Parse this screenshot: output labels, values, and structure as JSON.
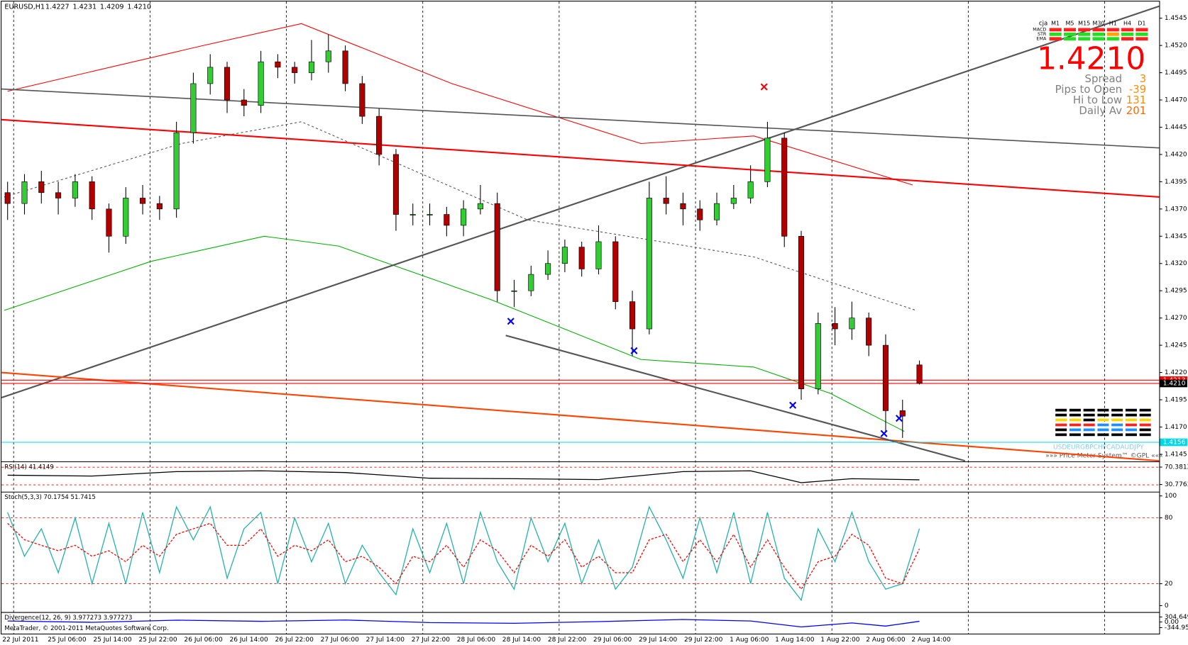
{
  "chart_data": {
    "type": "candlestick",
    "title": "EURUSD,H1",
    "last_bar_labels": [
      "1.4227",
      "1.4231",
      "1.4209",
      "1.4210"
    ],
    "xlim": [
      -0.36,
      68.2
    ],
    "ylim": [
      1.41388,
      1.45603
    ],
    "yticks": [
      {
        "value": 1.4545,
        "label": "1.4545"
      },
      {
        "value": 1.452,
        "label": "1.4520"
      },
      {
        "value": 1.4495,
        "label": "1.4495"
      },
      {
        "value": 1.447,
        "label": "1.4470"
      },
      {
        "value": 1.4445,
        "label": "1.4445"
      },
      {
        "value": 1.442,
        "label": "1.4420"
      },
      {
        "value": 1.4395,
        "label": "1.4395"
      },
      {
        "value": 1.437,
        "label": "1.4370"
      },
      {
        "value": 1.4345,
        "label": "1.4345"
      },
      {
        "value": 1.432,
        "label": "1.4320"
      },
      {
        "value": 1.4295,
        "label": "1.4295"
      },
      {
        "value": 1.427,
        "label": "1.4270"
      },
      {
        "value": 1.4245,
        "label": "1.4245"
      },
      {
        "value": 1.422,
        "label": "1.4220"
      },
      {
        "value": 1.4195,
        "label": "1.4195"
      },
      {
        "value": 1.417,
        "label": "1.4170"
      },
      {
        "value": 1.4145,
        "label": "1.4145"
      }
    ],
    "time_labels": [
      "22 Jul 2011",
      "25 Jul 06:00",
      "25 Jul 14:00",
      "25 Jul 22:00",
      "26 Jul 06:00",
      "26 Jul 14:00",
      "26 Jul 22:00",
      "27 Jul 06:00",
      "27 Jul 14:00",
      "27 Jul 22:00",
      "28 Jul 06:00",
      "28 Jul 14:00",
      "28 Jul 22:00",
      "29 Jul 06:00",
      "29 Jul 14:00",
      "29 Jul 22:00",
      "1 Aug 06:00",
      "1 Aug 14:00",
      "1 Aug 22:00",
      "2 Aug 06:00",
      "2 Aug 14:00"
    ],
    "bull_color": "#32cd32",
    "bear_color": "#b00000",
    "open": [
      1.4385,
      1.4375,
      1.4395,
      1.4385,
      1.438,
      1.4395,
      1.437,
      1.4345,
      1.438,
      1.4375,
      1.437,
      1.444,
      1.4485,
      1.45,
      1.447,
      1.4465,
      1.4505,
      1.45,
      1.4495,
      1.4505,
      1.4515,
      1.4485,
      1.4455,
      1.442,
      1.4365,
      1.4365,
      1.4365,
      1.4355,
      1.437,
      1.4375,
      1.4295,
      1.4295,
      1.431,
      1.432,
      1.4335,
      1.4315,
      1.434,
      1.4285,
      1.426,
      1.438,
      1.4375,
      1.437,
      1.436,
      1.4375,
      1.438,
      1.4395,
      1.4435,
      1.4345,
      1.4205,
      1.4265,
      1.426,
      1.427,
      1.4245,
      1.4185,
      1.4227
    ],
    "high": [
      1.4395,
      1.4402,
      1.4405,
      1.4395,
      1.4402,
      1.44,
      1.4375,
      1.439,
      1.4392,
      1.4382,
      1.445,
      1.4495,
      1.4512,
      1.4505,
      1.448,
      1.4515,
      1.4512,
      1.4505,
      1.4525,
      1.453,
      1.452,
      1.4492,
      1.4462,
      1.4425,
      1.4375,
      1.4375,
      1.4372,
      1.4378,
      1.4392,
      1.4385,
      1.4305,
      1.4318,
      1.4332,
      1.4342,
      1.434,
      1.4355,
      1.4345,
      1.4295,
      1.4395,
      1.44,
      1.4385,
      1.4378,
      1.4385,
      1.4392,
      1.441,
      1.445,
      1.444,
      1.435,
      1.4275,
      1.428,
      1.4285,
      1.4275,
      1.4255,
      1.4195,
      1.4231
    ],
    "low": [
      1.436,
      1.4365,
      1.4375,
      1.4365,
      1.4372,
      1.436,
      1.433,
      1.4338,
      1.4365,
      1.436,
      1.4362,
      1.443,
      1.4475,
      1.4458,
      1.4455,
      1.4458,
      1.449,
      1.4485,
      1.4488,
      1.4495,
      1.4478,
      1.4448,
      1.441,
      1.435,
      1.4355,
      1.4355,
      1.4345,
      1.4345,
      1.4365,
      1.4285,
      1.428,
      1.429,
      1.4305,
      1.4312,
      1.4308,
      1.431,
      1.4278,
      1.4235,
      1.4255,
      1.4365,
      1.4355,
      1.435,
      1.4355,
      1.437,
      1.4375,
      1.439,
      1.4335,
      1.4195,
      1.42,
      1.4245,
      1.425,
      1.4235,
      1.4165,
      1.416,
      1.4209
    ],
    "close": [
      1.4375,
      1.4395,
      1.4385,
      1.438,
      1.4395,
      1.437,
      1.4345,
      1.438,
      1.4375,
      1.437,
      1.444,
      1.4485,
      1.45,
      1.447,
      1.4465,
      1.4505,
      1.45,
      1.4495,
      1.4505,
      1.4515,
      1.4485,
      1.4455,
      1.442,
      1.4365,
      1.4365,
      1.4365,
      1.4355,
      1.437,
      1.4375,
      1.4295,
      1.4295,
      1.431,
      1.432,
      1.4335,
      1.4315,
      1.434,
      1.4285,
      1.426,
      1.438,
      1.4375,
      1.437,
      1.436,
      1.4375,
      1.438,
      1.4395,
      1.4435,
      1.4345,
      1.4205,
      1.4265,
      1.426,
      1.427,
      1.4245,
      1.4185,
      1.418,
      1.421
    ],
    "overlays": [
      {
        "color": "#ff0000",
        "width": 1,
        "x": [
          0,
          11.6,
          17.4,
          26.3,
          37.5,
          44.2,
          53.6
        ],
        "values": [
          1.4478,
          1.452,
          1.454,
          1.4485,
          1.443,
          1.4437,
          1.4392
        ]
      },
      {
        "color": "#00b000",
        "width": 1,
        "x": [
          -0.2,
          8.5,
          15.2,
          19.6,
          28.6,
          37.5,
          44.2,
          48.7,
          53.1
        ],
        "values": [
          1.4277,
          1.4322,
          1.4345,
          1.4336,
          1.4287,
          1.4232,
          1.4225,
          1.4201,
          1.4166
        ]
      },
      {
        "color": "#555555",
        "width": 1,
        "dashed": true,
        "x": [
          -0.2,
          10.3,
          17.4,
          30.8,
          44.2,
          53.8
        ],
        "values": [
          1.4381,
          1.443,
          1.445,
          1.436,
          1.4326,
          1.4277
        ]
      },
      {
        "color": "#555555",
        "width": 2,
        "x": [
          -0.36,
          68.2
        ],
        "values": [
          1.4197,
          1.4556
        ]
      },
      {
        "color": "#555555",
        "width": 1.5,
        "x": [
          -0.36,
          68.2
        ],
        "values": [
          1.448,
          1.4426
        ]
      },
      {
        "color": "#ff0000",
        "width": 2,
        "x": [
          -0.36,
          68.2
        ],
        "values": [
          1.4452,
          1.4381
        ]
      },
      {
        "color": "#ff4500",
        "width": 2,
        "x": [
          -0.36,
          68.2
        ],
        "values": [
          1.422,
          1.4139
        ]
      },
      {
        "color": "#555555",
        "width": 2,
        "x": [
          29.5,
          56.7
        ],
        "values": [
          1.4254,
          1.4139
        ]
      }
    ],
    "price_lines": [
      {
        "value": 1.4213,
        "label": "1.4213",
        "color": "#ff0000"
      },
      {
        "value": 1.421,
        "label": "1.4210",
        "color": "#ff0000"
      },
      {
        "value": 1.4156,
        "label": "1.4156",
        "color": "#00d8e8"
      }
    ],
    "signals": [
      {
        "x": 29.8,
        "price": 1.4267,
        "color": "#0000ff"
      },
      {
        "x": 37.1,
        "price": 1.424,
        "color": "#0000ff"
      },
      {
        "x": 46.5,
        "price": 1.419,
        "color": "#0000ff"
      },
      {
        "x": 51.9,
        "price": 1.4164,
        "color": "#0000ff"
      },
      {
        "x": 52.8,
        "price": 1.4178,
        "color": "#0000ff"
      },
      {
        "x": 44.8,
        "price": 1.4482,
        "color": "#ff0000"
      }
    ],
    "info": {
      "brand": "cja",
      "timeframes": [
        "M1",
        "M5",
        "M15",
        "M30",
        "H1",
        "H4",
        "D1"
      ],
      "rows": [
        "MACD",
        "STR",
        "EMA"
      ],
      "price": "1.4210",
      "stats": [
        {
          "label": "Spread",
          "value": 3
        },
        {
          "label": "Pips to Open",
          "value": -39
        },
        {
          "label": "Hi to Low",
          "value": 131
        },
        {
          "label": "Daily Av",
          "value": 201
        }
      ],
      "currencies": "USDEURGBPCHFCADAUDJPY",
      "footer": "»»» Price Meter System™ ©GPL «««"
    },
    "panels": [
      {
        "type": "line",
        "label": "RSI(14) 41.4149",
        "ylim": [
          15.3,
          80.7
        ],
        "yticks": [
          {
            "value": 70.3812,
            "label": "70.3812"
          },
          {
            "value": 30.7763,
            "label": "30.7763"
          }
        ],
        "levels": [
          70,
          30
        ],
        "series": [
          {
            "color": "#000000",
            "x": [
              0,
              5,
              10,
              15,
              20,
              25,
              30,
              35,
              40,
              44,
              47,
              50,
              54
            ],
            "values": [
              52,
              50,
              60,
              62,
              58,
              45,
              44,
              42,
              60,
              62,
              35,
              44,
              41.4149
            ]
          }
        ]
      },
      {
        "type": "line",
        "label": "Stoch(5,3,3) 70.1754 51.7415",
        "ylim": [
          -5.5,
          102.8
        ],
        "yticks": [
          100,
          80,
          20,
          0
        ],
        "levels": [
          80,
          20
        ],
        "series": [
          {
            "color": "#20b2aa",
            "values": [
              85,
              45,
              70,
              30,
              80,
              20,
              75,
              20,
              85,
              30,
              90,
              60,
              90,
              25,
              70,
              85,
              20,
              80,
              40,
              75,
              20,
              55,
              30,
              10,
              70,
              30,
              75,
              20,
              85,
              40,
              15,
              80,
              40,
              75,
              20,
              60,
              15,
              35,
              90,
              60,
              25,
              80,
              30,
              85,
              20,
              85,
              25,
              5,
              70,
              40,
              85,
              40,
              15,
              20,
              70.1754
            ]
          },
          {
            "color": "#ff0000",
            "dashed": true,
            "values": [
              75,
              60,
              55,
              50,
              55,
              45,
              50,
              40,
              55,
              45,
              65,
              70,
              75,
              55,
              55,
              70,
              45,
              55,
              50,
              60,
              40,
              45,
              35,
              20,
              45,
              40,
              55,
              35,
              60,
              50,
              30,
              55,
              45,
              60,
              35,
              45,
              30,
              30,
              60,
              65,
              40,
              60,
              40,
              65,
              35,
              60,
              35,
              15,
              40,
              45,
              65,
              55,
              25,
              20,
              51.7415
            ]
          }
        ]
      },
      {
        "type": "line",
        "label": "Divergence(12, 26, 9) 3.977273 3.977273",
        "ylim": [
          -713,
          535
        ],
        "yticks": [
          {
            "value": 304.649,
            "label": "304.649"
          },
          {
            "value": 0,
            "label": "0.00"
          },
          {
            "value": -344.95,
            "label": "-344.950"
          }
        ],
        "series": [
          {
            "color": "#0000ff",
            "x": [
              0,
              5,
              10,
              15,
              20,
              25,
              30,
              35,
              40,
              44,
              47,
              50,
              52,
              54
            ],
            "values": [
              60,
              -20,
              110,
              40,
              120,
              -40,
              -80,
              20,
              150,
              60,
              -300,
              -60,
              -250,
              40
            ]
          }
        ]
      }
    ],
    "copyright": "MetaTrader, © 2001-2011 MetaQuotes Software Corp.",
    "grid": true
  }
}
